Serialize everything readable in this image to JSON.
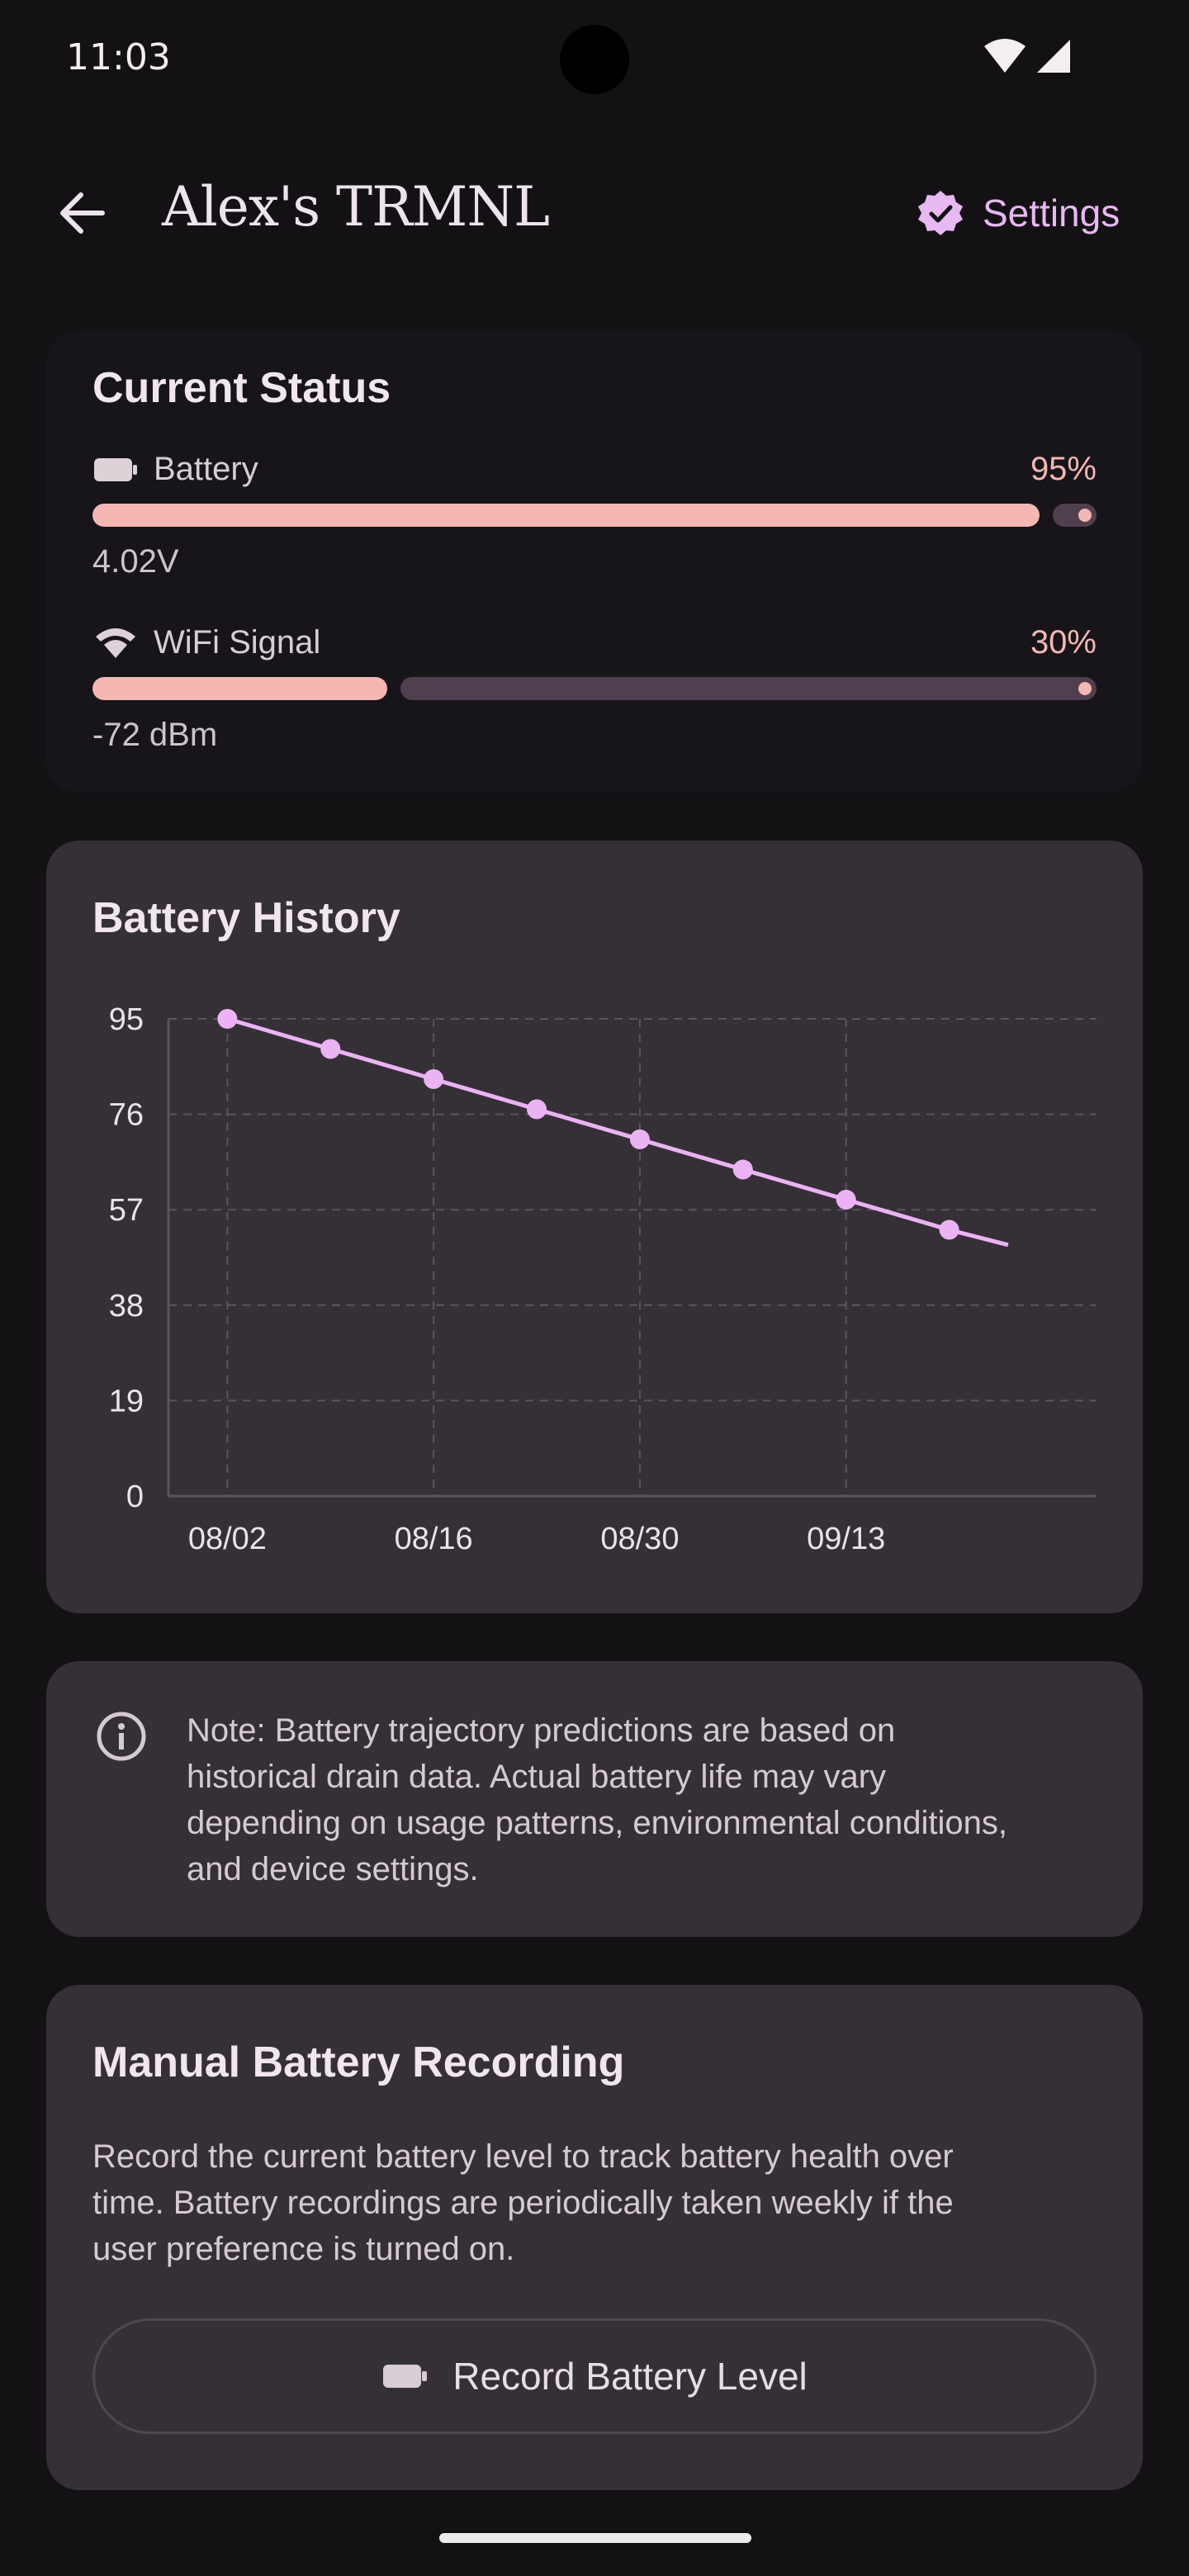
{
  "status_bar": {
    "time": "11:03"
  },
  "app_bar": {
    "title": "Alex's TRMNL",
    "settings_label": "Settings"
  },
  "current_status": {
    "title": "Current Status",
    "battery": {
      "label": "Battery",
      "percent_text": "95%",
      "level": 0.95,
      "voltage": "4.02V"
    },
    "wifi": {
      "label": "WiFi Signal",
      "percent_text": "30%",
      "level": 0.3,
      "signal": "-72 dBm"
    }
  },
  "battery_history": {
    "title": "Battery History"
  },
  "chart_data": {
    "type": "line",
    "title": "Battery History",
    "xlabel": "",
    "ylabel": "",
    "x_ticks": [
      "08/02",
      "08/16",
      "08/30",
      "09/13"
    ],
    "y_ticks": [
      0,
      19,
      38,
      57,
      76,
      95
    ],
    "ylim": [
      0,
      95
    ],
    "xlim": [
      "07/29",
      "09/30"
    ],
    "grid": true,
    "series": [
      {
        "points": [
          {
            "x": "08/02",
            "y": 95
          },
          {
            "x": "08/09",
            "y": 89
          },
          {
            "x": "08/16",
            "y": 83
          },
          {
            "x": "08/23",
            "y": 77
          },
          {
            "x": "08/30",
            "y": 71
          },
          {
            "x": "09/06",
            "y": 65
          },
          {
            "x": "09/13",
            "y": 59
          },
          {
            "x": "09/20",
            "y": 53
          }
        ],
        "trend_to": {
          "x": "09/24",
          "y": 50
        }
      }
    ],
    "colors": {
      "line": "#EBB2F4",
      "grid": "#5A545B"
    }
  },
  "note": {
    "icon": "info-icon",
    "text_lines": [
      "Note: Battery trajectory predictions are based on",
      "historical drain data. Actual battery life may vary",
      "depending on usage patterns, environmental conditions,",
      "and device settings."
    ]
  },
  "manual_recording": {
    "title": "Manual Battery Recording",
    "description_lines": [
      "Record the current battery level to track battery health over",
      "time. Battery recordings are periodically taken weekly if the",
      "user preference is turned on."
    ],
    "button_label": "Record Battery Level"
  },
  "colors": {
    "background": "#131114",
    "card": "#353036",
    "accent": "#E8B8F2",
    "progress": "#F4B7B2",
    "progress_track": "#503F4E"
  }
}
